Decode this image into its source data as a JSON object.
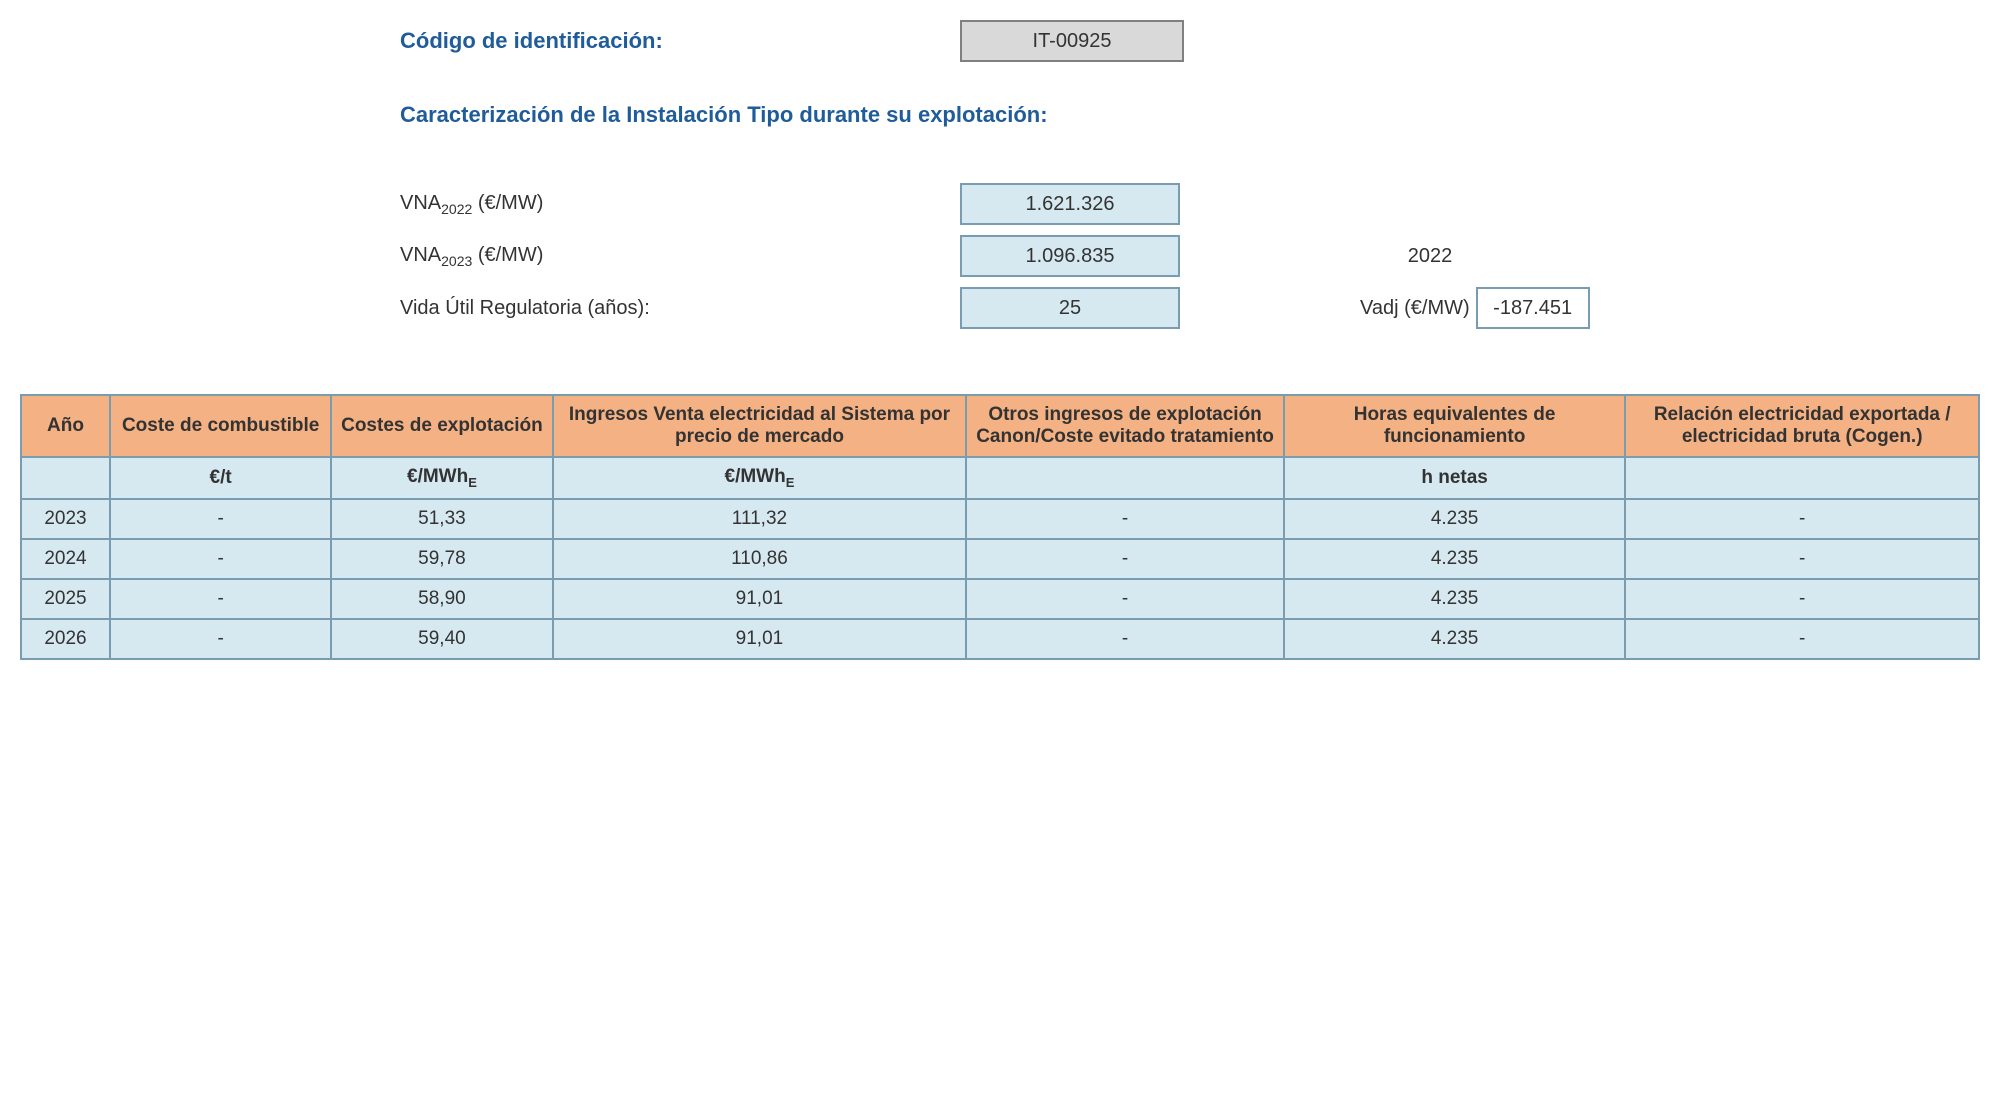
{
  "header": {
    "code_label": "Código de identificación:",
    "code_value": "IT-00925",
    "section_title": "Caracterización de la Instalación Tipo durante su explotación:"
  },
  "params": {
    "vna2022_label_pre": "VNA",
    "vna2022_sub": "2022",
    "vna2022_label_post": " (€/MW)",
    "vna2022_value": "1.621.326",
    "vna2023_label_pre": "VNA",
    "vna2023_sub": "2023",
    "vna2023_label_post": " (€/MW)",
    "vna2023_value": "1.096.835",
    "vida_label": "Vida Útil Regulatoria (años):",
    "vida_value": "25",
    "side_year": "2022",
    "vadj_label": "Vadj (€/MW)",
    "vadj_value": "-187.451"
  },
  "table": {
    "columns": [
      "Año",
      "Coste de combustible",
      "Costes de explotación",
      "Ingresos Venta electricidad al Sistema por precio de mercado",
      "Otros ingresos de explotación Canon/Coste evitado tratamiento",
      "Horas equivalentes de funcionamiento",
      "Relación electricidad exportada / electricidad bruta (Cogen.)"
    ],
    "units": [
      "",
      "€/t",
      "€/MWh",
      "€/MWh",
      "",
      "h netas",
      ""
    ],
    "units_sub": [
      "",
      "",
      "E",
      "E",
      "",
      "",
      ""
    ],
    "col_widths": [
      "60px",
      "170px",
      "170px",
      "330px",
      "250px",
      "270px",
      "280px"
    ],
    "rows": [
      [
        "2023",
        "-",
        "51,33",
        "111,32",
        "-",
        "4.235",
        "-"
      ],
      [
        "2024",
        "-",
        "59,78",
        "110,86",
        "-",
        "4.235",
        "-"
      ],
      [
        "2025",
        "-",
        "58,90",
        "91,01",
        "-",
        "4.235",
        "-"
      ],
      [
        "2026",
        "-",
        "59,40",
        "91,01",
        "-",
        "4.235",
        "-"
      ]
    ]
  }
}
